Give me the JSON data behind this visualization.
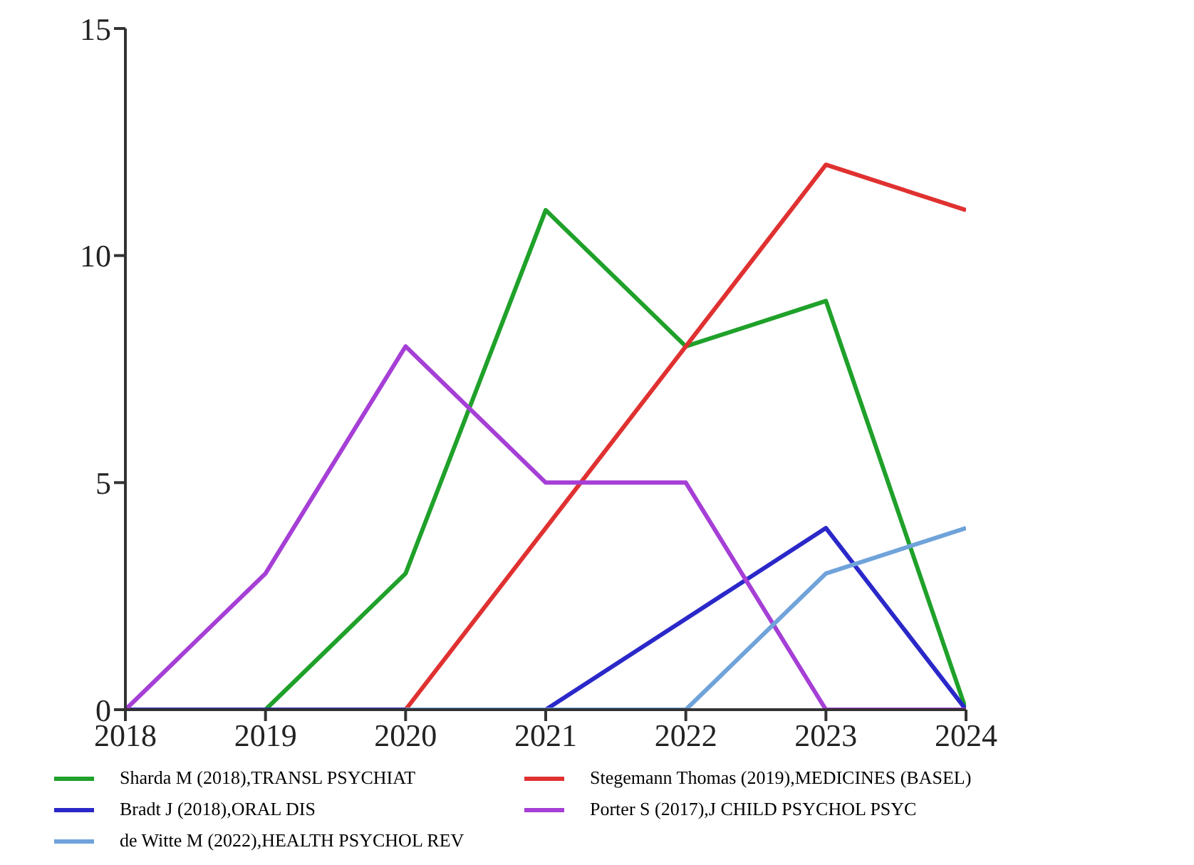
{
  "chart_data": {
    "type": "line",
    "x": [
      2018,
      2019,
      2020,
      2021,
      2022,
      2023,
      2024
    ],
    "xlim": [
      2018,
      2024
    ],
    "xticks": [
      2018,
      2019,
      2020,
      2021,
      2022,
      2023,
      2024
    ],
    "ylim": [
      0,
      15
    ],
    "yticks": [
      0,
      5,
      10,
      15
    ],
    "grid": false,
    "legend": "bottom",
    "marker": "none",
    "line_style": "solid",
    "series": [
      {
        "name": "Sharda M (2018),TRANSL PSYCHIAT",
        "color": "#1fa12a",
        "values": [
          0,
          0,
          3,
          11,
          8,
          9,
          0
        ]
      },
      {
        "name": "Stegemann Thomas (2019),MEDICINES (BASEL)",
        "color": "#e03131",
        "values": [
          0,
          0,
          0,
          4,
          8,
          12,
          11
        ]
      },
      {
        "name": "Bradt J (2018),ORAL DIS",
        "color": "#2b28c9",
        "values": [
          0,
          0,
          0,
          0,
          2,
          4,
          0
        ]
      },
      {
        "name": "Porter S (2017),J CHILD PSYCHOL PSYC",
        "color": "#a63fd6",
        "values": [
          0,
          3,
          8,
          5,
          5,
          0,
          0
        ]
      },
      {
        "name": "de Witte M (2022),HEALTH PSYCHOL REV",
        "color": "#6fa3da",
        "values": [
          null,
          null,
          0,
          0,
          0,
          3,
          4
        ]
      }
    ]
  }
}
